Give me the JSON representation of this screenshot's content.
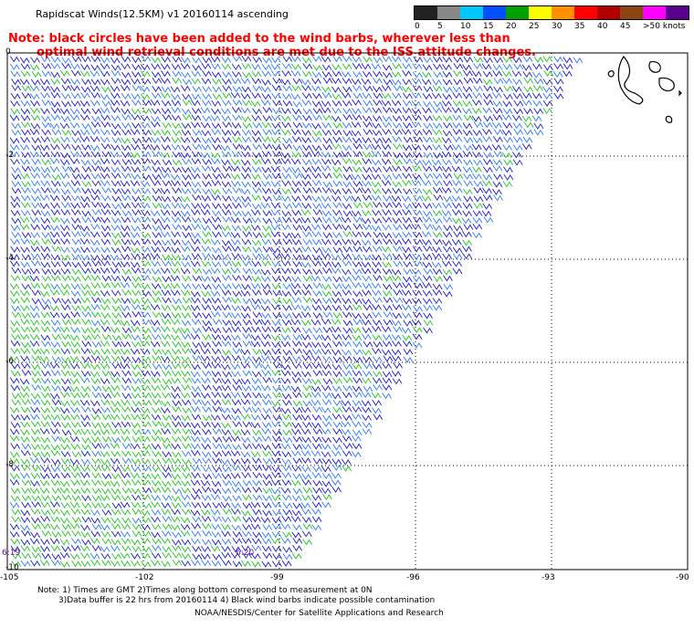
{
  "title": "Rapidscat Winds(12.5KM) v1 20160114 ascending",
  "note_line1": "Note: black circles have been added to the wind barbs, wherever less than",
  "note_line2": "optimal wind retrieval conditions are met due to the ISS attitude changes.",
  "legend": {
    "labels": [
      "0",
      "5",
      "10",
      "15",
      "20",
      "25",
      "30",
      "35",
      "40",
      "45",
      ">50 knots"
    ],
    "colors": [
      "#222222",
      "#888888",
      "#00c8ff",
      "#0050ff",
      "#00a000",
      "#ffff00",
      "#ff9000",
      "#ff0000",
      "#b00000",
      "#8b4513",
      "#ff00ff",
      "#5a008c"
    ]
  },
  "axes": {
    "x_labels": [
      "-105",
      "-102",
      "-99",
      "-96",
      "-93",
      "-90"
    ],
    "y_labels": [
      "0",
      "-2",
      "-4",
      "-6",
      "-8",
      "-10"
    ]
  },
  "times": {
    "left": "6:19",
    "mid": "6:20"
  },
  "footer": {
    "line1": "Note: 1) Times are GMT 2)Times along bottom correspond to measurement at 0N",
    "line2": "3)Data buffer is 22 hrs from 20160114 4) Black wind barbs indicate possible contamination",
    "line3": "NOAA/NESDIS/Center for Satellite Applications and Research"
  }
}
